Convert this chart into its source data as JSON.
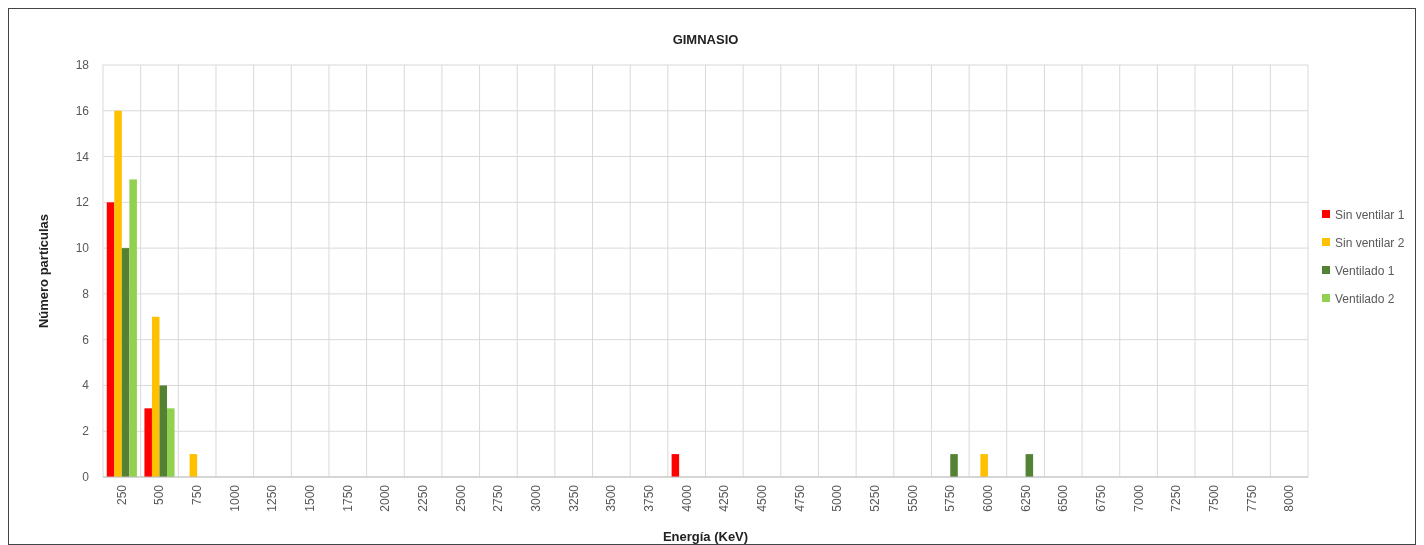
{
  "chart_data": {
    "type": "bar",
    "title": "GIMNASIO",
    "xlabel": "Energía (KeV)",
    "ylabel": "Número partículas",
    "categories": [
      "250",
      "500",
      "750",
      "1000",
      "1250",
      "1500",
      "1750",
      "2000",
      "2250",
      "2500",
      "2750",
      "3000",
      "3250",
      "3500",
      "3750",
      "4000",
      "4250",
      "4500",
      "4750",
      "5000",
      "5250",
      "5500",
      "5750",
      "6000",
      "6250",
      "6500",
      "6750",
      "7000",
      "7250",
      "7500",
      "7750",
      "8000"
    ],
    "series": [
      {
        "name": "Sin ventilar 1",
        "color": "#ff0000",
        "values": [
          12,
          3,
          0,
          0,
          0,
          0,
          0,
          0,
          0,
          0,
          0,
          0,
          0,
          0,
          0,
          1,
          0,
          0,
          0,
          0,
          0,
          0,
          0,
          0,
          0,
          0,
          0,
          0,
          0,
          0,
          0,
          0
        ]
      },
      {
        "name": "Sin ventilar 2",
        "color": "#ffc000",
        "values": [
          16,
          7,
          1,
          0,
          0,
          0,
          0,
          0,
          0,
          0,
          0,
          0,
          0,
          0,
          0,
          0,
          0,
          0,
          0,
          0,
          0,
          0,
          0,
          1,
          0,
          0,
          0,
          0,
          0,
          0,
          0,
          0
        ]
      },
      {
        "name": "Ventilado 1",
        "color": "#548235",
        "values": [
          10,
          4,
          0,
          0,
          0,
          0,
          0,
          0,
          0,
          0,
          0,
          0,
          0,
          0,
          0,
          0,
          0,
          0,
          0,
          0,
          0,
          0,
          1,
          0,
          1,
          0,
          0,
          0,
          0,
          0,
          0,
          0
        ]
      },
      {
        "name": "Ventilado 2",
        "color": "#92d050",
        "values": [
          13,
          3,
          0,
          0,
          0,
          0,
          0,
          0,
          0,
          0,
          0,
          0,
          0,
          0,
          0,
          0,
          0,
          0,
          0,
          0,
          0,
          0,
          0,
          0,
          0,
          0,
          0,
          0,
          0,
          0,
          0,
          0
        ]
      }
    ],
    "ylim": [
      0,
      18
    ],
    "yticks": [
      0,
      2,
      4,
      6,
      8,
      10,
      12,
      14,
      16,
      18
    ],
    "grid": true,
    "legend": "right"
  }
}
